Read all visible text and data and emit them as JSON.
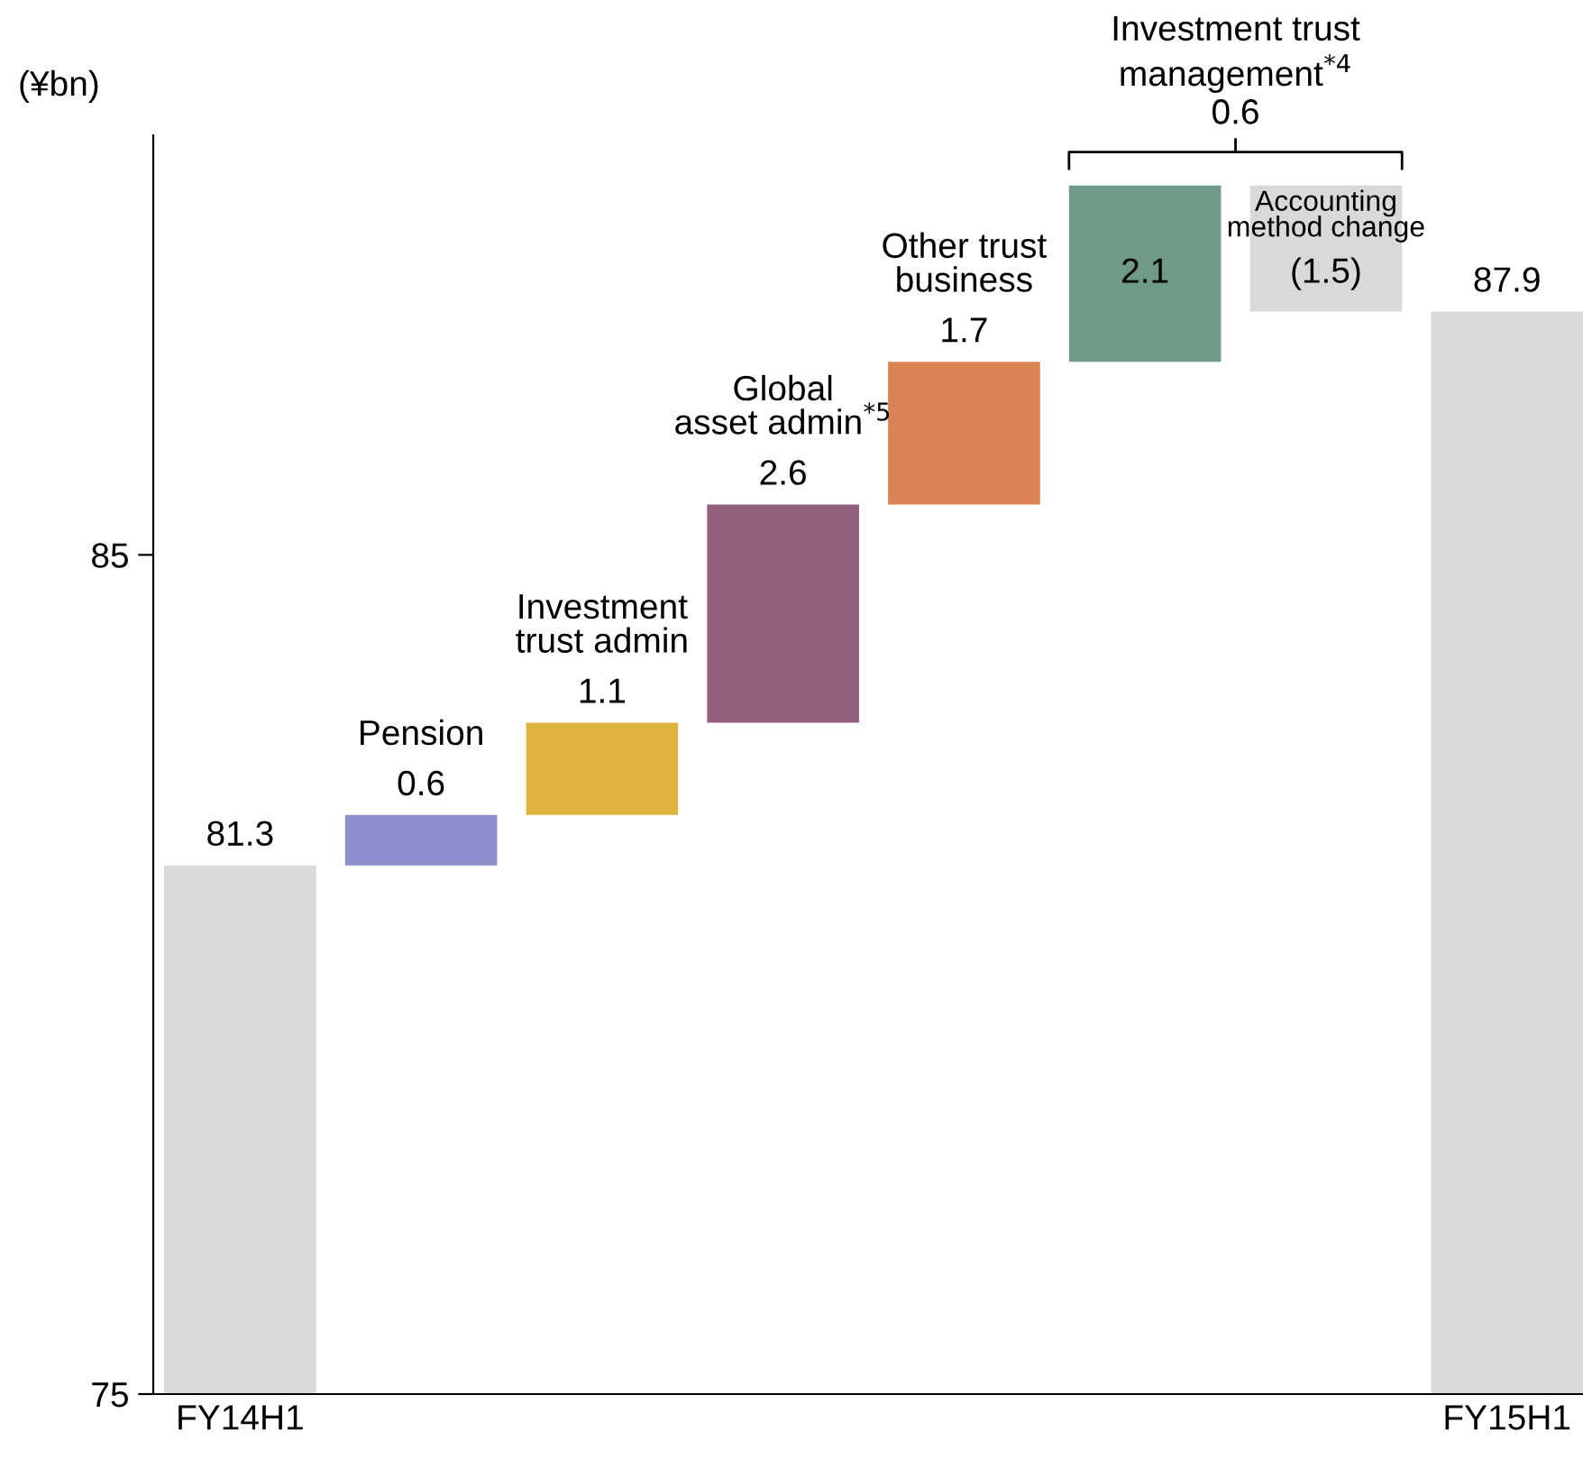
{
  "chart_data": {
    "type": "bar",
    "ylabel": "(¥bn)",
    "categories": [
      "FY14H1",
      "Pension",
      "Investment\ntrust admin",
      "Global\nasset admin$^{*5}$",
      "Other trust\nbusiness",
      null,
      "Accounting\nmethod change",
      "FY15H1"
    ],
    "values": [
      81.3,
      0.6,
      1.1,
      2.6,
      1.7,
      2.1,
      -1.5,
      87.9
    ],
    "base": [
      null,
      81.3,
      81.9,
      83.0,
      85.6,
      87.3,
      89.4,
      null
    ],
    "colors": [
      "#d9d9d9",
      "#8b8fcb",
      "#dfb43e",
      "#95607f",
      "#d98452",
      "#6f9b86",
      "#d9d9d9",
      "#d9d9d9"
    ],
    "value_labels": [
      "81.3",
      "0.6",
      "1.1",
      "2.6",
      "1.7",
      "2.1",
      "(1.5)",
      "87.9"
    ],
    "annotations": [
      "Investment trust\nmanagement$^{*4}$\n0.6"
    ],
    "ylim": [
      75,
      90
    ],
    "yticks": [
      75,
      85
    ],
    "grid": false
  }
}
